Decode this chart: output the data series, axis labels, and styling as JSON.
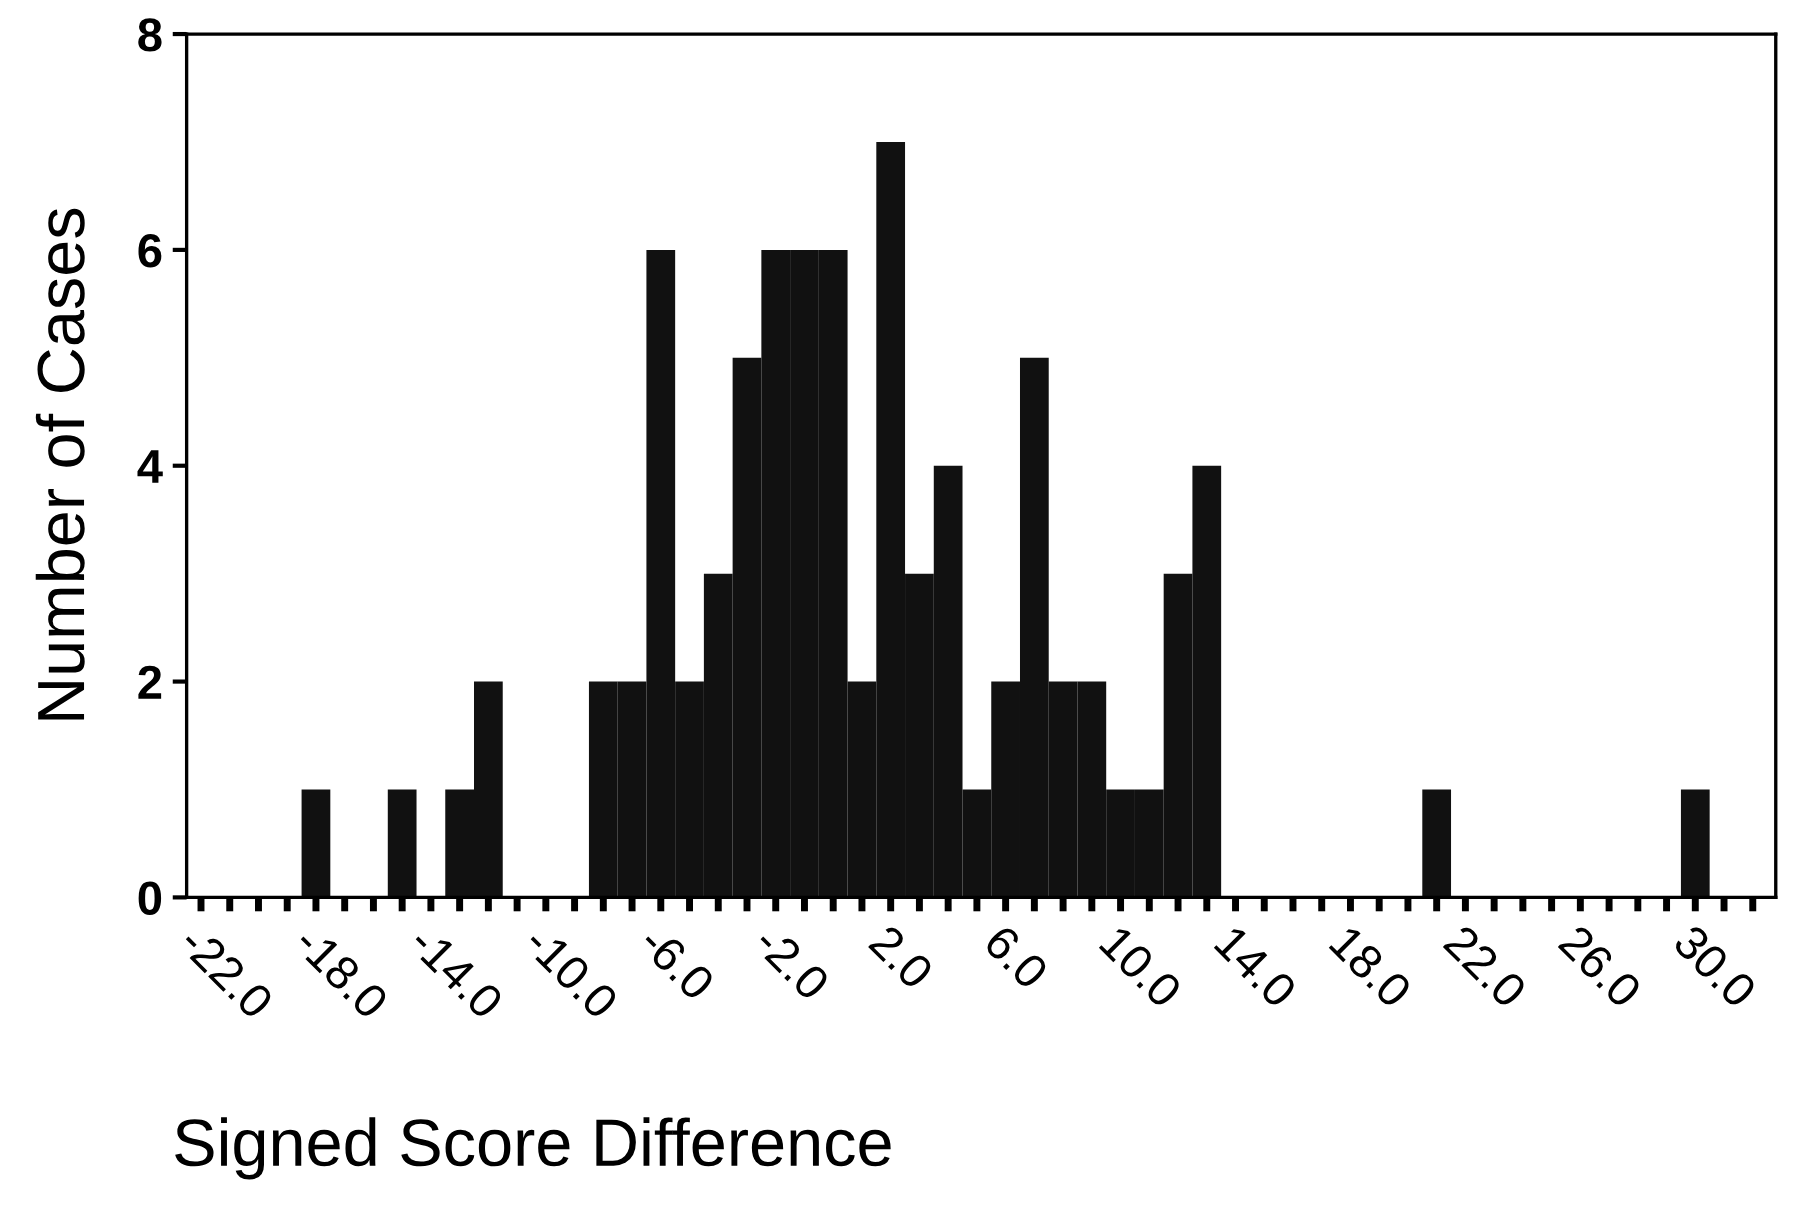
{
  "chart_data": {
    "type": "histogram",
    "xlabel": "Signed Score Difference",
    "ylabel": "Number of Cases",
    "color": "#111111",
    "bins": [
      -18.5,
      -17.5,
      -16.5,
      -15.5,
      -14.5,
      -13.5,
      -12.5,
      -11.5,
      -10.5,
      -9.5,
      -8.5,
      -7.5,
      -6.5,
      -5.5,
      -4.5,
      -3.5,
      -2.5,
      -1.5,
      -0.5,
      0.5,
      1.5,
      2.5,
      3.5,
      4.5,
      5.5,
      6.5,
      7.5,
      8.5,
      9.5,
      10.5,
      11.5,
      12.5,
      13.5,
      14.5,
      15.5,
      16.5,
      17.5,
      18.5,
      19.5,
      20.5,
      21.5,
      22.5,
      23.5,
      24.5,
      25.5,
      26.5,
      27.5,
      28.5,
      29.5,
      30.5
    ],
    "values": [
      1,
      0,
      0,
      1,
      0,
      1,
      2,
      0,
      0,
      0,
      2,
      2,
      6,
      2,
      3,
      5,
      6,
      6,
      6,
      2,
      7,
      3,
      4,
      1,
      2,
      5,
      2,
      2,
      1,
      1,
      3,
      4,
      0,
      0,
      0,
      0,
      0,
      0,
      0,
      1,
      0,
      0,
      0,
      0,
      0,
      0,
      0,
      0,
      1
    ],
    "xlim": [
      -22.5,
      32.8
    ],
    "ylim": [
      0,
      8
    ],
    "xticks": [
      {
        "value": -22,
        "label": "-22.0"
      },
      {
        "value": -18,
        "label": "-18.0"
      },
      {
        "value": -14,
        "label": "-14.0"
      },
      {
        "value": -10,
        "label": "-10.0"
      },
      {
        "value": -6,
        "label": "-6.0"
      },
      {
        "value": -2,
        "label": "-2.0"
      },
      {
        "value": 2,
        "label": "2.0"
      },
      {
        "value": 6,
        "label": "6.0"
      },
      {
        "value": 10,
        "label": "10.0"
      },
      {
        "value": 14,
        "label": "14.0"
      },
      {
        "value": 18,
        "label": "18.0"
      },
      {
        "value": 22,
        "label": "22.0"
      },
      {
        "value": 26,
        "label": "26.0"
      },
      {
        "value": 30,
        "label": "30.0"
      }
    ],
    "yticks": [
      0,
      2,
      4,
      6,
      8
    ],
    "grid": false
  }
}
